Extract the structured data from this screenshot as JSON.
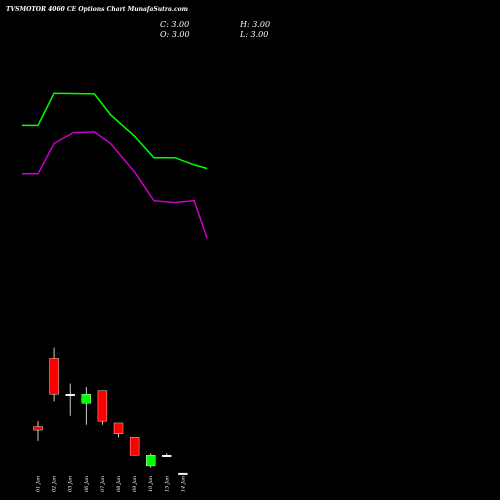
{
  "chart_data": {
    "type": "candlestick",
    "title": "TVSMOTOR 4060  CE Options Chart MunafaSutra.com",
    "ohlc": {
      "C": "C: 3.00",
      "H": "H: 3.00",
      "O": "O: 3.00",
      "L": "L: 3.00"
    },
    "categories": [
      "01 Jan",
      "02 Jan",
      "03 Jan",
      "06 Jan",
      "07 Jan",
      "08 Jan",
      "09 Jan",
      "10 Jan",
      "13 Jan",
      "14 Jan"
    ],
    "candles": [
      {
        "date": "01 Jan",
        "open": 4.3,
        "high": 4.45,
        "low": 3.9,
        "close": 4.2,
        "color": "red"
      },
      {
        "date": "02 Jan",
        "open": 6.2,
        "high": 6.5,
        "low": 5.0,
        "close": 5.2,
        "color": "red"
      },
      {
        "date": "03 Jan",
        "open": 5.2,
        "high": 5.5,
        "low": 4.6,
        "close": 5.2,
        "color": "white"
      },
      {
        "date": "06 Jan",
        "open": 4.95,
        "high": 5.4,
        "low": 4.35,
        "close": 5.2,
        "color": "green"
      },
      {
        "date": "07 Jan",
        "open": 5.3,
        "high": 5.3,
        "low": 4.35,
        "close": 4.45,
        "color": "red"
      },
      {
        "date": "08 Jan",
        "open": 4.4,
        "high": 4.4,
        "low": 4.0,
        "close": 4.1,
        "color": "red"
      },
      {
        "date": "09 Jan",
        "open": 4.0,
        "high": 4.0,
        "low": 3.5,
        "close": 3.5,
        "color": "red"
      },
      {
        "date": "10 Jan",
        "open": 3.2,
        "high": 3.55,
        "low": 3.15,
        "close": 3.5,
        "color": "green"
      },
      {
        "date": "13 Jan",
        "open": 3.5,
        "high": 3.55,
        "low": 3.45,
        "close": 3.5,
        "color": "white"
      },
      {
        "date": "14 Jan",
        "open": 3.0,
        "high": 3.0,
        "low": 3.0,
        "close": 3.0,
        "color": "white"
      }
    ],
    "upper_band": {
      "color": "#00ff00",
      "values": [
        {
          "x": -1,
          "y": 12.7
        },
        {
          "x": 0,
          "y": 12.7
        },
        {
          "x": 1,
          "y": 13.6
        },
        {
          "x": 3.5,
          "y": 13.58
        },
        {
          "x": 4.5,
          "y": 13.0
        },
        {
          "x": 6.0,
          "y": 12.4
        },
        {
          "x": 7.2,
          "y": 11.8
        },
        {
          "x": 8.5,
          "y": 11.8
        },
        {
          "x": 9.7,
          "y": 11.6
        },
        {
          "x": 10.5,
          "y": 11.5
        }
      ]
    },
    "lower_band": {
      "color": "#cc00cc",
      "values": [
        {
          "x": -1,
          "y": 11.35
        },
        {
          "x": 0,
          "y": 11.35
        },
        {
          "x": 1,
          "y": 12.2
        },
        {
          "x": 2.2,
          "y": 12.5
        },
        {
          "x": 3.5,
          "y": 12.52
        },
        {
          "x": 4.5,
          "y": 12.2
        },
        {
          "x": 6.0,
          "y": 11.4
        },
        {
          "x": 7.2,
          "y": 10.6
        },
        {
          "x": 8.5,
          "y": 10.55
        },
        {
          "x": 9.7,
          "y": 10.6
        },
        {
          "x": 10.5,
          "y": 9.55
        }
      ]
    },
    "ylim": [
      2.25,
      16.2
    ],
    "grid": false,
    "background": "#000000"
  }
}
